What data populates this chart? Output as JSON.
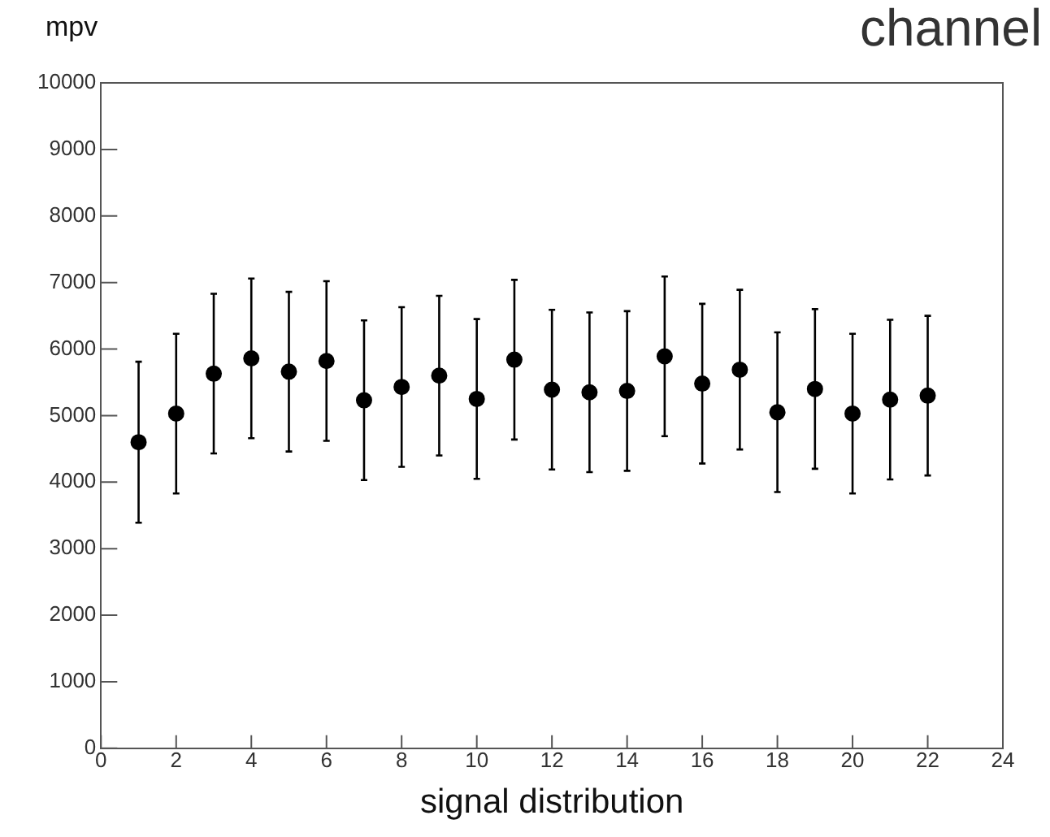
{
  "chart_data": {
    "type": "scatter",
    "ylabel": "mpv",
    "annotations": [
      "channel",
      "signal distribution"
    ],
    "x": [
      1,
      2,
      3,
      4,
      5,
      6,
      7,
      8,
      9,
      10,
      11,
      12,
      13,
      14,
      15,
      16,
      17,
      18,
      19,
      20,
      21,
      22
    ],
    "series": [
      {
        "color": "#000000",
        "values": [
          4600,
          5030,
          5630,
          5860,
          5660,
          5820,
          5230,
          5430,
          5600,
          5250,
          5840,
          5390,
          5350,
          5370,
          5890,
          5480,
          5690,
          5050,
          5400,
          5030,
          5240,
          5300
        ],
        "errors": [
          1210,
          1200,
          1200,
          1200,
          1200,
          1200,
          1200,
          1200,
          1200,
          1200,
          1200,
          1200,
          1200,
          1200,
          1200,
          1200,
          1200,
          1200,
          1200,
          1200,
          1200,
          1200
        ]
      }
    ],
    "xlim": [
      0,
      24
    ],
    "xticks": [
      0,
      2,
      4,
      6,
      8,
      10,
      12,
      14,
      16,
      18,
      20,
      22,
      24
    ],
    "ylim": [
      0,
      10000
    ],
    "yticks": [
      0,
      1000,
      2000,
      3000,
      4000,
      5000,
      6000,
      7000,
      8000,
      9000,
      10000
    ],
    "grid": false,
    "legend": false,
    "marker": "circle"
  }
}
